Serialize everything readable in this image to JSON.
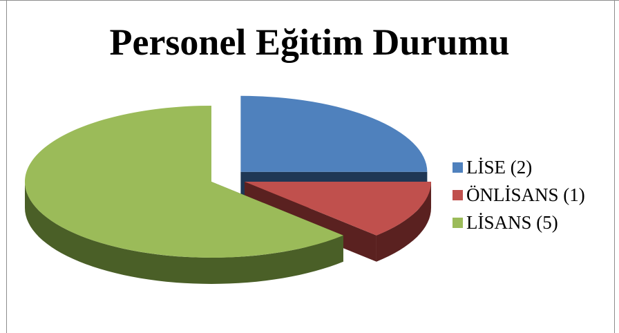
{
  "chart_data": {
    "type": "pie",
    "title": "Personel Eğitim Durumu",
    "categories": [
      "LİSE (2)",
      "ÖNLİSANS (1)",
      "LİSANS (5)"
    ],
    "values": [
      2,
      1,
      5
    ],
    "legend": "right",
    "three_d": true,
    "exploded": true,
    "colors": [
      "#4F81BD",
      "#C0504D",
      "#9BBB59"
    ],
    "side_colors": [
      "#1F3755",
      "#5A2120",
      "#4A5F27"
    ]
  }
}
